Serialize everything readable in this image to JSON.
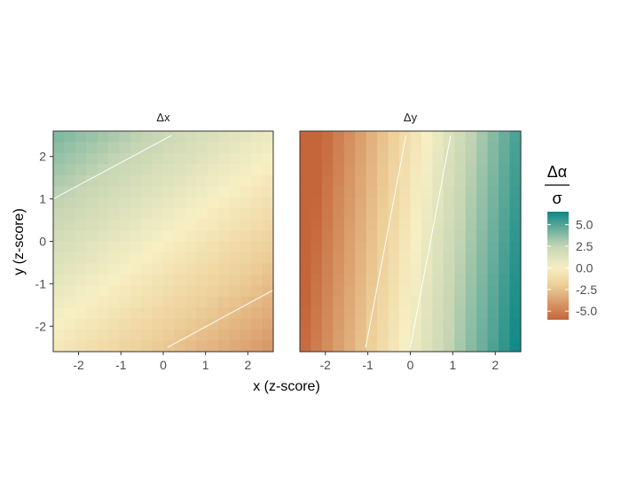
{
  "chart_data": {
    "type": "heatmap",
    "xlabel": "x (z-score)",
    "ylabel": "y (z-score)",
    "xlim": [
      -2.6,
      2.6
    ],
    "ylim": [
      -2.6,
      2.6
    ],
    "x_ticks": [
      -2,
      -1,
      0,
      1,
      2
    ],
    "y_ticks": [
      -2,
      -1,
      0,
      1,
      2
    ],
    "x_tick_labels": [
      "-2",
      "-1",
      "0",
      "1",
      "2"
    ],
    "y_tick_labels": [
      "-2",
      "-1",
      "0",
      "1",
      "2"
    ],
    "grid": false,
    "legend": {
      "title_numerator": "Δα",
      "title_denominator": "σ",
      "placement": "right",
      "range": [
        -6,
        6.5
      ],
      "breaks": [
        5.0,
        2.5,
        0.0,
        -2.5,
        -5.0
      ],
      "break_labels": [
        "5.0",
        "2.5",
        "0.0",
        "-2.5",
        "-5.0"
      ],
      "colors": {
        "low": "#c5653a",
        "mid_low": "#edcf98",
        "mid": "#f7efc4",
        "mid_high": "#c5d5b3",
        "high": "#0d8785"
      }
    },
    "panels": [
      {
        "title": "Δx",
        "field": {
          "intercept": 0.0,
          "x_coef": -0.7,
          "y_coef": 0.9
        },
        "contours": [
          {
            "x": [
              -2.6,
              0.2
            ],
            "y": [
              1.0,
              2.5
            ]
          },
          {
            "x": [
              0.1,
              2.6
            ],
            "y": [
              -2.5,
              -1.15
            ]
          }
        ]
      },
      {
        "title": "Δy",
        "field": {
          "intercept": -0.3,
          "x_coef": 2.45,
          "y_coef": -0.25
        },
        "contours": [
          {
            "x": [
              -1.05,
              -0.1
            ],
            "y": [
              -2.5,
              2.5
            ]
          },
          {
            "x": [
              0.0,
              0.95
            ],
            "y": [
              -2.5,
              2.5
            ]
          }
        ]
      }
    ]
  }
}
